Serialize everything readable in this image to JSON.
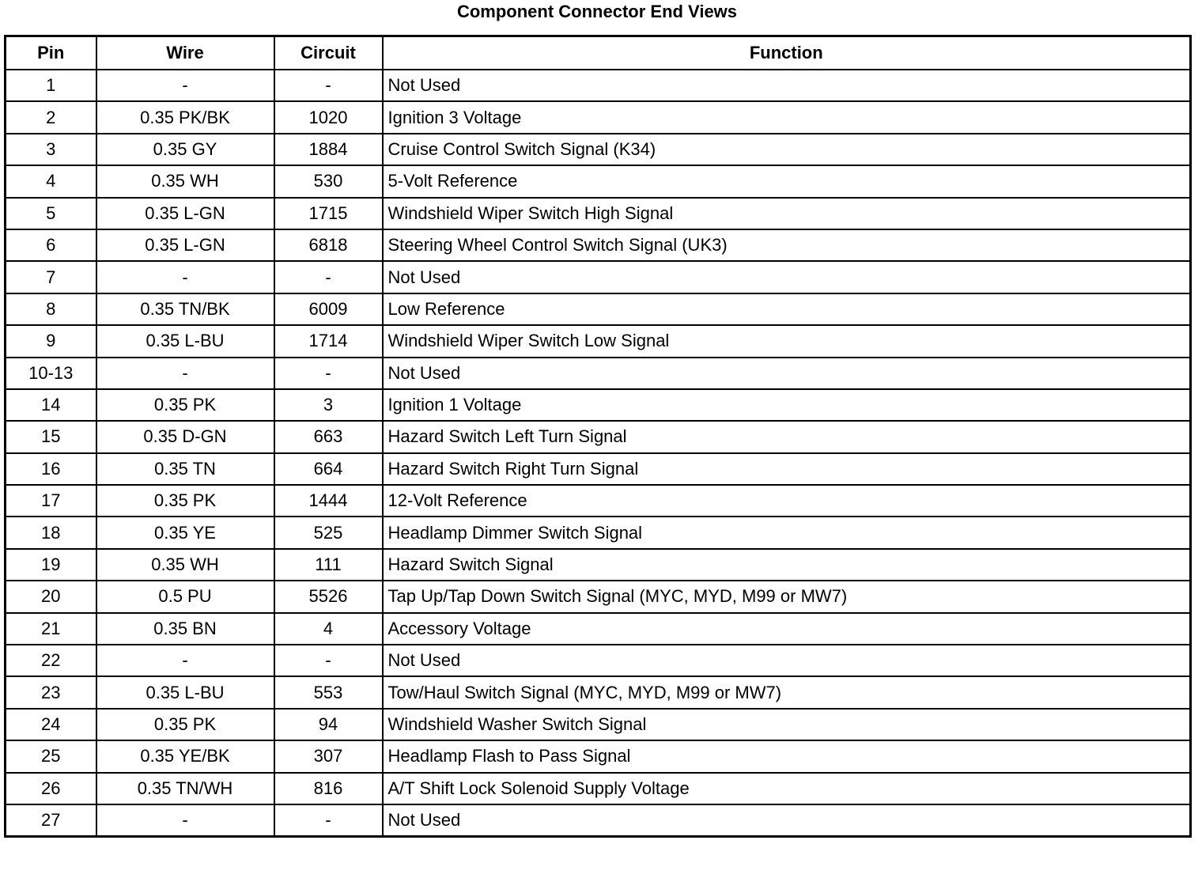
{
  "title": "Component Connector End Views",
  "columns": [
    "Pin",
    "Wire",
    "Circuit",
    "Function"
  ],
  "rows": [
    [
      "1",
      "-",
      "-",
      "Not Used"
    ],
    [
      "2",
      "0.35 PK/BK",
      "1020",
      "Ignition 3 Voltage"
    ],
    [
      "3",
      "0.35 GY",
      "1884",
      "Cruise Control Switch Signal (K34)"
    ],
    [
      "4",
      "0.35 WH",
      "530",
      "5-Volt Reference"
    ],
    [
      "5",
      "0.35 L-GN",
      "1715",
      "Windshield Wiper Switch High Signal"
    ],
    [
      "6",
      "0.35 L-GN",
      "6818",
      "Steering Wheel Control Switch Signal (UK3)"
    ],
    [
      "7",
      "-",
      "-",
      "Not Used"
    ],
    [
      "8",
      "0.35 TN/BK",
      "6009",
      "Low Reference"
    ],
    [
      "9",
      "0.35 L-BU",
      "1714",
      "Windshield Wiper Switch Low Signal"
    ],
    [
      "10-13",
      "-",
      "-",
      "Not Used"
    ],
    [
      "14",
      "0.35 PK",
      "3",
      "Ignition 1 Voltage"
    ],
    [
      "15",
      "0.35 D-GN",
      "663",
      "Hazard Switch Left Turn Signal"
    ],
    [
      "16",
      "0.35 TN",
      "664",
      "Hazard Switch Right Turn Signal"
    ],
    [
      "17",
      "0.35 PK",
      "1444",
      "12-Volt Reference"
    ],
    [
      "18",
      "0.35 YE",
      "525",
      "Headlamp Dimmer Switch Signal"
    ],
    [
      "19",
      "0.35 WH",
      "111",
      "Hazard Switch Signal"
    ],
    [
      "20",
      "0.5 PU",
      "5526",
      "Tap Up/Tap Down Switch Signal (MYC, MYD, M99 or MW7)"
    ],
    [
      "21",
      "0.35 BN",
      "4",
      "Accessory Voltage"
    ],
    [
      "22",
      "-",
      "-",
      "Not Used"
    ],
    [
      "23",
      "0.35 L-BU",
      "553",
      "Tow/Haul Switch Signal (MYC, MYD, M99 or MW7)"
    ],
    [
      "24",
      "0.35 PK",
      "94",
      "Windshield Washer Switch Signal"
    ],
    [
      "25",
      "0.35 YE/BK",
      "307",
      "Headlamp Flash to Pass Signal"
    ],
    [
      "26",
      "0.35 TN/WH",
      "816",
      "A/T Shift Lock Solenoid Supply Voltage"
    ],
    [
      "27",
      "-",
      "-",
      "Not Used"
    ]
  ]
}
